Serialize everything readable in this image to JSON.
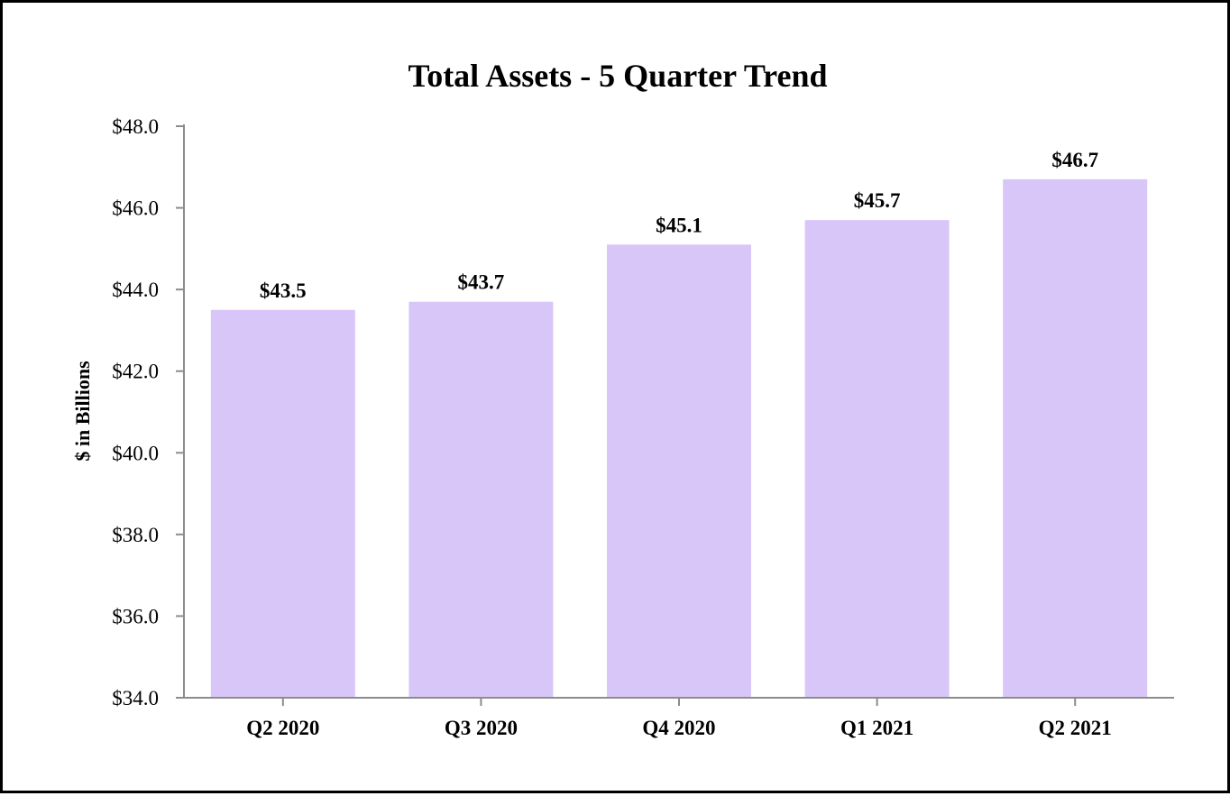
{
  "chart_data": {
    "type": "bar",
    "title": "Total Assets - 5 Quarter Trend",
    "xlabel": "",
    "ylabel": "$ in Billions",
    "categories": [
      "Q2 2020",
      "Q3 2020",
      "Q4 2020",
      "Q1 2021",
      "Q2 2021"
    ],
    "values": [
      43.5,
      43.7,
      45.1,
      45.7,
      46.7
    ],
    "data_labels": [
      "$43.5",
      "$43.7",
      "$45.1",
      "$45.7",
      "$46.7"
    ],
    "ylim": [
      34.0,
      48.0
    ],
    "yticks": [
      34.0,
      36.0,
      38.0,
      40.0,
      42.0,
      44.0,
      46.0,
      48.0
    ],
    "ytick_labels": [
      "$34.0",
      "$36.0",
      "$38.0",
      "$40.0",
      "$42.0",
      "$44.0",
      "$46.0",
      "$48.0"
    ],
    "bar_color": "#d8c6f8",
    "grid": false,
    "legend": "none"
  }
}
